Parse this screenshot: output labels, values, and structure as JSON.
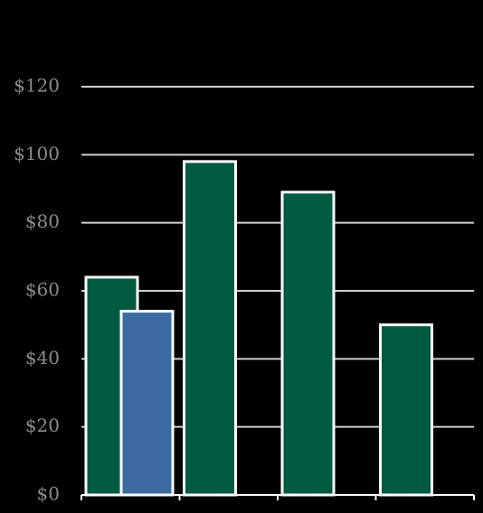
{
  "chart_data": {
    "type": "bar",
    "categories": [
      null,
      null,
      null,
      null
    ],
    "series": [
      {
        "color": "#005a42",
        "values": [
          64,
          98,
          89,
          50
        ]
      },
      {
        "color": "#3b6aa0",
        "values": [
          54,
          null,
          null,
          null
        ]
      }
    ],
    "ylim": [
      0,
      120
    ],
    "yticks": [
      {
        "value": 0,
        "label": "$0"
      },
      {
        "value": 20,
        "label": "$20"
      },
      {
        "value": 40,
        "label": "$40"
      },
      {
        "value": 60,
        "label": "$60"
      },
      {
        "value": 80,
        "label": "$80"
      },
      {
        "value": 100,
        "label": "$100"
      },
      {
        "value": 120,
        "label": "$120"
      }
    ],
    "grid": true
  }
}
